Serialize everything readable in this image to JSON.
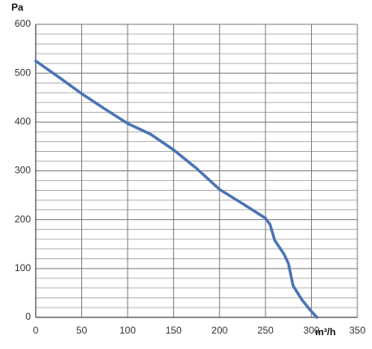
{
  "chart_data": {
    "type": "line",
    "y_label": "Pa",
    "x_label": "m³/h",
    "x": [
      0,
      25,
      50,
      75,
      100,
      125,
      150,
      175,
      200,
      225,
      250,
      255,
      260,
      270,
      275,
      280,
      290,
      300,
      306
    ],
    "series": [
      {
        "color": "#4a74b4",
        "values": [
          525,
          492,
          458,
          427,
          397,
          375,
          343,
          305,
          262,
          233,
          203,
          190,
          158,
          130,
          110,
          65,
          35,
          12,
          0
        ]
      }
    ],
    "xlim": [
      0,
      350
    ],
    "xticks": [
      0,
      50,
      100,
      150,
      200,
      250,
      300,
      350
    ],
    "ylim": [
      0,
      600
    ],
    "yticks": [
      0,
      100,
      200,
      300,
      400,
      500,
      600
    ],
    "y_minor_ticks": [
      20,
      40,
      60,
      80,
      120,
      140,
      160,
      180,
      220,
      240,
      260,
      280,
      320,
      340,
      360,
      380,
      420,
      440,
      460,
      480,
      520,
      540,
      560,
      580
    ],
    "grid": true
  }
}
